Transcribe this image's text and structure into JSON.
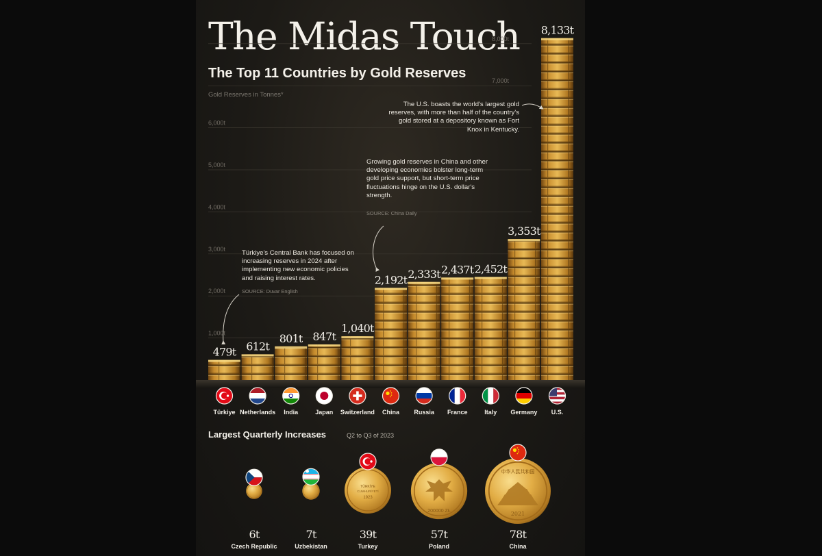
{
  "title": "The Midas Touch",
  "subtitle": "The Top 11 Countries by Gold Reserves",
  "unit_label": "Gold Reserves in Tonnes*",
  "notes": {
    "us": "The U.S. boasts the world's largest gold reserves, with more than half of the country's gold stored at a depository known as Fort Knox in Kentucky.",
    "china": "Growing gold reserves in China and other developing economies bolster long-term gold price support, but short-term price fluctuations hinge on the U.S. dollar's strength.",
    "china_source": "SOURCE: China Daily",
    "turkiye": "Türkiye's Central Bank has focused on increasing reserves in 2024 after implementing new economic policies and raising interest rates.",
    "turkiye_source": "SOURCE: Duvar English"
  },
  "chart_data": [
    {
      "type": "bar",
      "title": "The Top 11 Countries by Gold Reserves",
      "ylabel": "Gold Reserves in Tonnes*",
      "xlabel": "",
      "ylim": [
        0,
        8300
      ],
      "yticks": [
        1000,
        2000,
        3000,
        4000,
        5000,
        6000,
        7000,
        8000
      ],
      "ytick_labels": [
        "1,000t",
        "2,000t",
        "3,000t",
        "4,000t",
        "5,000t",
        "6,000t",
        "7,000t",
        "8,000t"
      ],
      "grid": true,
      "categories": [
        "Türkiye",
        "Netherlands",
        "India",
        "Japan",
        "Switzerland",
        "China",
        "Russia",
        "France",
        "Italy",
        "Germany",
        "U.S."
      ],
      "values": [
        479,
        612,
        801,
        847,
        1040,
        2192,
        2333,
        2437,
        2452,
        3353,
        8133
      ],
      "value_labels": [
        "479t",
        "612t",
        "801t",
        "847t",
        "1,040t",
        "2,192t",
        "2,333t",
        "2,437t",
        "2,452t",
        "3,353t",
        "8,133t"
      ],
      "flags": [
        "turkiye-flag",
        "netherlands-flag",
        "india-flag",
        "japan-flag",
        "switzerland-flag",
        "china-flag",
        "russia-flag",
        "france-flag",
        "italy-flag",
        "germany-flag",
        "usa-flag"
      ]
    },
    {
      "type": "bar",
      "title": "Largest Quarterly Increases",
      "subtitle": "Q2 to Q3 of 2023",
      "categories": [
        "Czech Republic",
        "Uzbekistan",
        "Turkey",
        "Poland",
        "China"
      ],
      "values": [
        6,
        7,
        39,
        57,
        78
      ],
      "value_labels": [
        "6t",
        "7t",
        "39t",
        "57t",
        "78t"
      ],
      "flags": [
        "czech-flag",
        "uzbekistan-flag",
        "turkey-flag",
        "poland-flag",
        "china-flag"
      ]
    }
  ],
  "coin_text": {
    "turkey": [
      "TÜRKİYE",
      "CUMHURİYETİ",
      "1923"
    ],
    "poland": "200000 ZŁ",
    "china": [
      "中华人民共和国",
      "2021"
    ]
  },
  "colors": {
    "gold_light": "#e8b955",
    "gold_mid": "#c58a2c",
    "gold_dark": "#6e4512",
    "background": "#1c1a16",
    "grid": "#3c3830"
  }
}
